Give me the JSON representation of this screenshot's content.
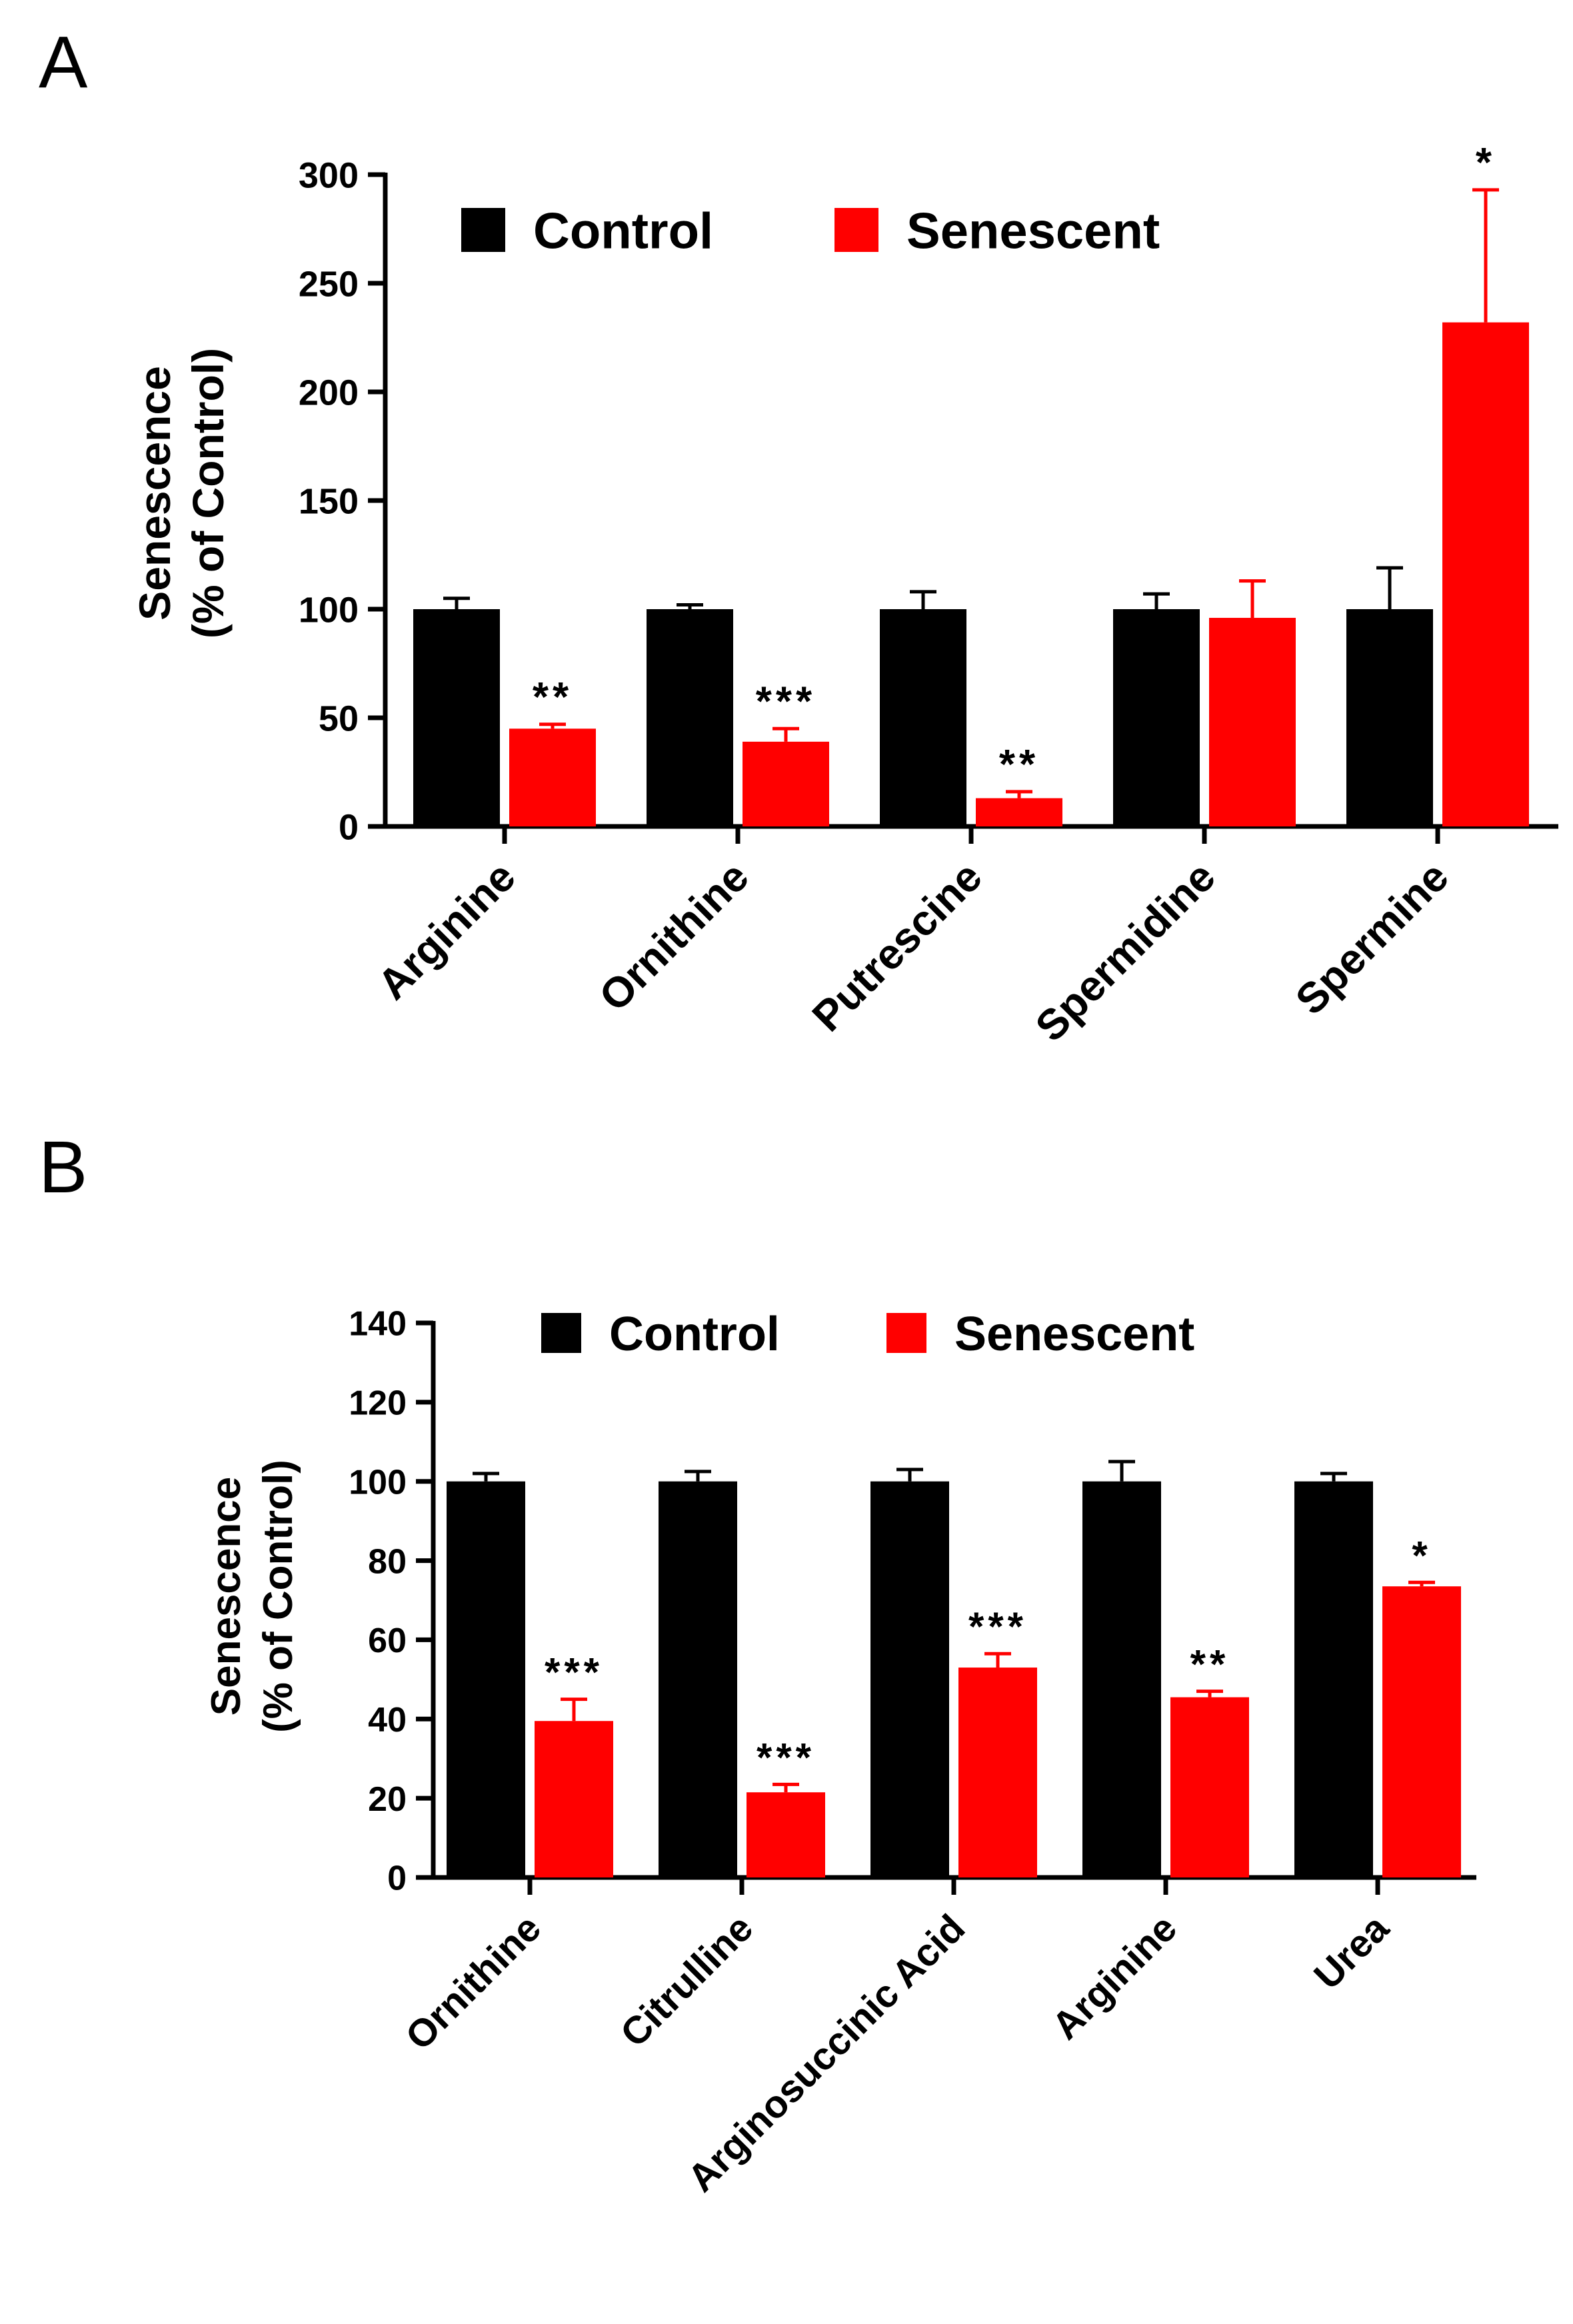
{
  "panels": {
    "a": {
      "label": "A"
    },
    "b": {
      "label": "B"
    }
  },
  "colors": {
    "control": "#000000",
    "senescent": "#ff0000"
  },
  "chart_data": [
    {
      "id": "a",
      "type": "bar",
      "title": "",
      "xlabel": "",
      "ylabel": "Senescence",
      "ylabel2": "(% of Control)",
      "ylim": [
        0,
        300
      ],
      "yticks": [
        0,
        50,
        100,
        150,
        200,
        250,
        300
      ],
      "categories": [
        "Arginine",
        "Ornithine",
        "Putrescine",
        "Spermidine",
        "Spermine"
      ],
      "series": [
        {
          "name": "Control",
          "color": "#000000",
          "values": [
            100,
            100,
            100,
            100,
            100
          ],
          "errors": [
            5,
            2,
            8,
            7,
            19
          ]
        },
        {
          "name": "Senescent",
          "color": "#ff0000",
          "values": [
            45,
            39,
            13,
            96,
            232
          ],
          "errors": [
            2,
            6,
            3,
            17,
            61
          ]
        }
      ],
      "significance": [
        "**",
        "***",
        "**",
        "",
        "*"
      ],
      "legend": {
        "position": "top-left",
        "entries": [
          "Control",
          "Senescent"
        ]
      }
    },
    {
      "id": "b",
      "type": "bar",
      "title": "",
      "xlabel": "",
      "ylabel": "Senescence",
      "ylabel2": "(% of Control)",
      "ylim": [
        0,
        140
      ],
      "yticks": [
        0,
        20,
        40,
        60,
        80,
        100,
        120,
        140
      ],
      "categories": [
        "Ornithine",
        "Citrulline",
        "Arginosuccinic Acid",
        "Arginine",
        "Urea"
      ],
      "series": [
        {
          "name": "Control",
          "color": "#000000",
          "values": [
            100,
            100,
            100,
            100,
            100
          ],
          "errors": [
            2,
            2.5,
            3,
            5,
            2
          ]
        },
        {
          "name": "Senescent",
          "color": "#ff0000",
          "values": [
            39.5,
            21.5,
            53,
            45.5,
            73.5
          ],
          "errors": [
            5.5,
            2,
            3.5,
            1.5,
            1
          ]
        }
      ],
      "significance": [
        "***",
        "***",
        "***",
        "**",
        "*"
      ],
      "legend": {
        "position": "top",
        "entries": [
          "Control",
          "Senescent"
        ]
      }
    }
  ]
}
